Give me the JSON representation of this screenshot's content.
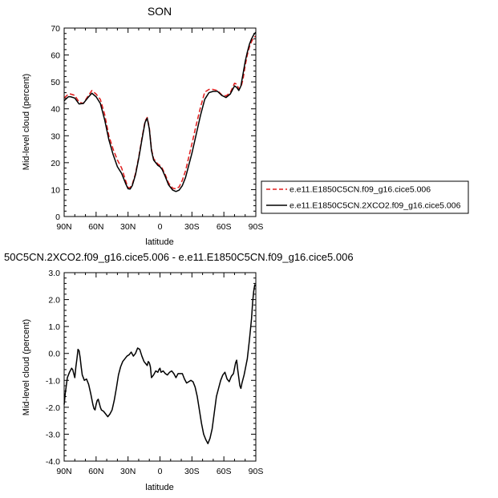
{
  "chart_data": [
    {
      "type": "line",
      "title": "SON",
      "xlabel": "latitude",
      "ylabel": "Mid-level cloud (percent)",
      "xlim": [
        90,
        -90
      ],
      "ylim": [
        0,
        70
      ],
      "x_ticks": [
        {
          "value": 90,
          "label": "90N"
        },
        {
          "value": 60,
          "label": "60N"
        },
        {
          "value": 30,
          "label": "30N"
        },
        {
          "value": 0,
          "label": "0"
        },
        {
          "value": -30,
          "label": "30S"
        },
        {
          "value": -60,
          "label": "60S"
        },
        {
          "value": -90,
          "label": "90S"
        }
      ],
      "y_ticks": [
        0,
        10,
        20,
        30,
        40,
        50,
        60,
        70
      ],
      "legend_position": "right",
      "series": [
        {
          "name": "e.e11.E1850C5CN.f09_g16.cice5.006",
          "color": "#e01b1b",
          "dash": "dashed",
          "x": [
            90,
            86,
            84,
            80,
            76,
            72,
            68,
            64,
            60,
            56,
            52,
            48,
            44,
            40,
            36,
            32,
            30,
            28,
            26,
            23,
            20,
            17,
            14,
            12,
            10,
            8,
            6,
            4,
            2,
            0,
            -2,
            -5,
            -8,
            -12,
            -15,
            -18,
            -21,
            -24,
            -27,
            -30,
            -34,
            -38,
            -42,
            -46,
            -50,
            -54,
            -58,
            -62,
            -66,
            -70,
            -72,
            -74,
            -76,
            -78,
            -80,
            -82,
            -84,
            -86,
            -88,
            -90
          ],
          "y": [
            44,
            45.5,
            45.5,
            45,
            42.5,
            42,
            44.5,
            46.8,
            45.5,
            43.5,
            38,
            30,
            25,
            21,
            18,
            13,
            10.7,
            10.8,
            12,
            16,
            22,
            29,
            35.5,
            36.8,
            33,
            25,
            21.5,
            20.5,
            19.5,
            19,
            18,
            15.5,
            12.5,
            10.5,
            10.3,
            11,
            13.5,
            17,
            22,
            27,
            34,
            40.5,
            46.2,
            47.2,
            47.2,
            46.8,
            45.2,
            44.8,
            46,
            49.5,
            49.2,
            47.5,
            48,
            51,
            56,
            60,
            63,
            65,
            66.5,
            67
          ]
        },
        {
          "name": "e.e11.E1850C5CN.2XCO2.f09_g16.cice5.006",
          "color": "#000000",
          "dash": "solid",
          "x": [
            90,
            86,
            84,
            80,
            76,
            72,
            68,
            64,
            60,
            56,
            52,
            48,
            44,
            40,
            36,
            32,
            30,
            28,
            26,
            23,
            20,
            17,
            14,
            12,
            10,
            8,
            6,
            4,
            2,
            0,
            -2,
            -5,
            -8,
            -12,
            -15,
            -18,
            -21,
            -24,
            -27,
            -30,
            -34,
            -38,
            -42,
            -46,
            -50,
            -54,
            -58,
            -62,
            -66,
            -70,
            -72,
            -74,
            -76,
            -78,
            -80,
            -82,
            -84,
            -86,
            -88,
            -90
          ],
          "y": [
            43,
            44.5,
            44.5,
            44,
            41.8,
            42,
            44,
            45.8,
            44.5,
            42,
            36,
            28.5,
            23,
            18.5,
            16,
            12,
            10.3,
            10.2,
            11.5,
            15.5,
            21.5,
            28.5,
            35,
            36.5,
            32.5,
            24.5,
            21,
            20,
            19,
            18.5,
            17.5,
            14.8,
            11.8,
            9.8,
            9.3,
            9.8,
            11.5,
            14.5,
            19,
            23.5,
            30.5,
            37.5,
            43.5,
            46,
            46.5,
            46.5,
            45,
            44.2,
            45.5,
            48.5,
            48,
            46.8,
            48.5,
            53,
            57.5,
            61,
            64,
            66,
            67.5,
            68.5
          ]
        }
      ]
    },
    {
      "type": "line",
      "title": "50C5CN.2XCO2.f09_g16.cice5.006 - e.e11.E1850C5CN.f09_g16.cice5.006",
      "xlabel": "latitude",
      "ylabel": "Mid-level cloud (percent)",
      "xlim": [
        90,
        -90
      ],
      "ylim": [
        -4.0,
        3.0
      ],
      "x_ticks": [
        {
          "value": 90,
          "label": "90N"
        },
        {
          "value": 60,
          "label": "60N"
        },
        {
          "value": 30,
          "label": "30N"
        },
        {
          "value": 0,
          "label": "0"
        },
        {
          "value": -30,
          "label": "30S"
        },
        {
          "value": -60,
          "label": "60S"
        },
        {
          "value": -90,
          "label": "90S"
        }
      ],
      "y_ticks": [
        {
          "value": 3.0,
          "label": "3.0"
        },
        {
          "value": 2.0,
          "label": "2.0"
        },
        {
          "value": 1.0,
          "label": "1.0"
        },
        {
          "value": 0.0,
          "label": "0.0"
        },
        {
          "value": -1.0,
          "label": "-1.0"
        },
        {
          "value": -2.0,
          "label": "-2.0"
        },
        {
          "value": -3.0,
          "label": "-3.0"
        },
        {
          "value": -4.0,
          "label": "-4.0"
        }
      ],
      "series": [
        {
          "color": "#000000",
          "dash": "solid",
          "x": [
            90,
            89,
            87,
            85,
            83,
            82,
            80,
            79,
            78,
            77,
            76,
            75,
            74,
            73,
            71,
            69,
            67,
            65,
            63,
            62,
            61,
            60,
            59,
            58,
            57,
            56,
            55,
            53,
            51,
            49,
            47,
            45,
            43,
            41,
            39,
            37,
            35,
            33,
            31,
            29,
            27,
            25,
            23,
            21,
            19,
            17,
            15,
            13,
            12,
            11,
            10,
            9,
            8,
            6,
            4,
            2,
            1,
            0,
            -1,
            -3,
            -5,
            -7,
            -9,
            -11,
            -13,
            -15,
            -17,
            -19,
            -21,
            -23,
            -25,
            -27,
            -29,
            -31,
            -33,
            -35,
            -37,
            -39,
            -41,
            -43,
            -45,
            -47,
            -49,
            -51,
            -53,
            -55,
            -57,
            -59,
            -61,
            -63,
            -65,
            -67,
            -69,
            -70,
            -71,
            -72,
            -73,
            -74,
            -75,
            -76,
            -77,
            -78,
            -79,
            -80,
            -81,
            -82,
            -84,
            -86,
            -87,
            -88,
            -89,
            -90
          ],
          "y": [
            -1.9,
            -1.5,
            -0.9,
            -0.7,
            -0.55,
            -0.6,
            -0.9,
            -0.5,
            -0.2,
            0.15,
            0.1,
            -0.15,
            -0.5,
            -0.8,
            -1.0,
            -0.95,
            -1.15,
            -1.5,
            -1.9,
            -2.05,
            -2.1,
            -1.9,
            -1.75,
            -1.7,
            -1.85,
            -2.0,
            -2.1,
            -2.15,
            -2.25,
            -2.35,
            -2.25,
            -2.1,
            -1.75,
            -1.3,
            -0.8,
            -0.5,
            -0.3,
            -0.2,
            -0.1,
            -0.05,
            0.05,
            -0.1,
            0.0,
            0.2,
            0.15,
            -0.1,
            -0.3,
            -0.4,
            -0.45,
            -0.3,
            -0.35,
            -0.5,
            -0.9,
            -0.8,
            -0.65,
            -0.7,
            -0.6,
            -0.55,
            -0.7,
            -0.65,
            -0.75,
            -0.8,
            -0.7,
            -0.65,
            -0.75,
            -0.9,
            -0.75,
            -0.75,
            -0.75,
            -0.95,
            -1.1,
            -1.05,
            -1.0,
            -1.05,
            -1.25,
            -1.6,
            -2.1,
            -2.6,
            -3.0,
            -3.2,
            -3.35,
            -3.15,
            -2.8,
            -2.2,
            -1.6,
            -1.3,
            -1.0,
            -0.8,
            -0.7,
            -0.95,
            -1.05,
            -0.85,
            -0.75,
            -0.55,
            -0.35,
            -0.25,
            -0.6,
            -0.9,
            -1.2,
            -1.3,
            -1.1,
            -0.95,
            -0.8,
            -0.6,
            -0.4,
            -0.2,
            0.5,
            1.3,
            1.9,
            2.3,
            2.55,
            2.5
          ]
        }
      ]
    }
  ]
}
